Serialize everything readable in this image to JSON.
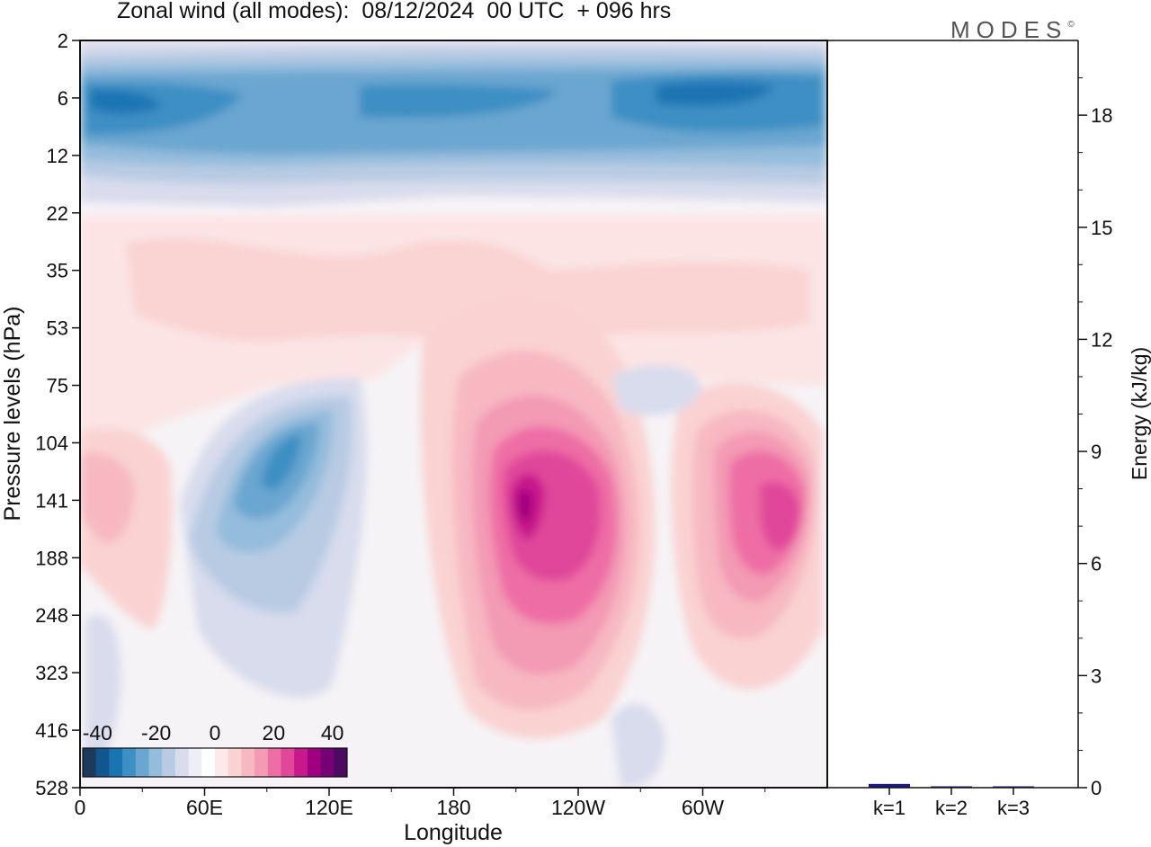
{
  "title": "Zonal wind (all modes):  08/12/2024  00 UTC  + 096 hrs",
  "logo": {
    "text": "MODES",
    "mark": "©"
  },
  "chart_data": [
    {
      "type": "heatmap",
      "title": "Zonal wind (all modes):  08/12/2024  00 UTC  + 096 hrs",
      "xlabel": "Longitude",
      "ylabel": "Pressure levels (hPa)",
      "x_ticks": [
        "0",
        "60E",
        "120E",
        "180",
        "120W",
        "60W"
      ],
      "x_tick_degrees": [
        0,
        60,
        120,
        180,
        240,
        300
      ],
      "xlim": [
        0,
        360
      ],
      "y_ticks": [
        "2",
        "6",
        "12",
        "22",
        "35",
        "53",
        "75",
        "104",
        "141",
        "188",
        "248",
        "323",
        "416",
        "528"
      ],
      "y_scale": "model levels (top 2 hPa, bottom 528 hPa)",
      "colorbar": {
        "ticks": [
          "-40",
          "-20",
          "0",
          "20",
          "40"
        ],
        "min": -45,
        "max": 45,
        "step": 5,
        "colors": [
          "#1b3a5c",
          "#13558f",
          "#1a74b2",
          "#3e8fc4",
          "#6aa6d0",
          "#94bcdc",
          "#b8cbe3",
          "#d8dced",
          "#eeeef7",
          "#ffffff",
          "#fde9e9",
          "#fad2d2",
          "#f7b8c2",
          "#f39ab4",
          "#ee6da5",
          "#e0469a",
          "#c8188c",
          "#a0007f",
          "#770074",
          "#4d0a62"
        ],
        "placement": "bottom-left inside plot"
      },
      "features": [
        {
          "region": "upper levels 2-16 hPa, all longitudes",
          "sign": "negative",
          "peak": -30
        },
        {
          "region": "central Pacific 180-120W, 75-323 hPa",
          "sign": "positive",
          "peak": 40
        },
        {
          "region": "60W-0, 104-248 hPa",
          "sign": "positive",
          "peak": 30
        },
        {
          "region": "60E-120E, 75-250 hPa",
          "sign": "negative",
          "peak": -25
        },
        {
          "region": "mid levels 22-75 hPa",
          "sign": "positive",
          "peak": 10
        }
      ]
    },
    {
      "type": "bar",
      "ylabel": "Energy (kJ/kg)",
      "categories": [
        "k=1",
        "k=2",
        "k=3"
      ],
      "values": [
        0.1,
        0.03,
        0.03
      ],
      "ylim": [
        0,
        20
      ],
      "y_ticks": [
        0,
        3,
        6,
        9,
        12,
        15,
        18
      ],
      "bar_color": "#1a1a80"
    }
  ]
}
